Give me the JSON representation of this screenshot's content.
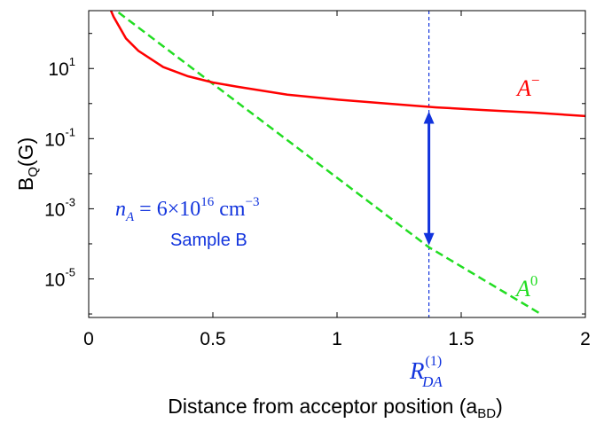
{
  "chart_data": {
    "type": "line",
    "xlabel": "Distance from acceptor position (a",
    "xlabel_sub": "BD",
    "xlabel_end": ")",
    "ylabel": "B",
    "ylabel_sub": "Q",
    "ylabel_end": "(G)",
    "xlim": [
      0,
      2
    ],
    "ylim_log10": [
      -6.1,
      2.65
    ],
    "y_scale": "log",
    "grid": false,
    "x_ticks": [
      "0",
      "0.5",
      "1",
      "1.5",
      "2"
    ],
    "x_tick_values": [
      0,
      0.5,
      1,
      1.5,
      2
    ],
    "y_ticks": [
      {
        "base": "10",
        "exp": "1",
        "value_log10": 1
      },
      {
        "base": "10",
        "exp": "-1",
        "value_log10": -1
      },
      {
        "base": "10",
        "exp": "-3",
        "value_log10": -3
      },
      {
        "base": "10",
        "exp": "-5",
        "value_log10": -5
      }
    ],
    "series": [
      {
        "name": "A⁻",
        "color": "#ff0000",
        "style": "solid",
        "x": [
          0.08,
          0.1,
          0.15,
          0.2,
          0.3,
          0.4,
          0.5,
          0.6,
          0.8,
          1.0,
          1.2,
          1.4,
          1.6,
          1.8,
          2.0
        ],
        "y": [
          650,
          300,
          72,
          32,
          11,
          6,
          4,
          3,
          1.8,
          1.3,
          1.0,
          0.78,
          0.65,
          0.55,
          0.44
        ]
      },
      {
        "name": "A⁰",
        "color": "#22dd22",
        "style": "dashed",
        "x": [
          0.08,
          1.37,
          1.82
        ],
        "y": [
          650,
          8e-05,
          1e-06
        ]
      }
    ],
    "annotations": {
      "marker_x": 1.37,
      "marker_color": "#1133dd",
      "arrow_top_y": 0.6,
      "arrow_bottom_y": 9e-05,
      "density_label": {
        "var": "n",
        "sub": "A",
        "text": " = 6×10",
        "exp": "16",
        "unit": " cm",
        "unit_exp": "−3"
      },
      "sample_label": "Sample B",
      "radius_label": {
        "var": "R",
        "sup": "(1)",
        "sub": "DA"
      },
      "series_label_a_minus": {
        "var": "A",
        "sup": "−"
      },
      "series_label_a_zero": {
        "var": "A",
        "sup": "0"
      }
    }
  }
}
